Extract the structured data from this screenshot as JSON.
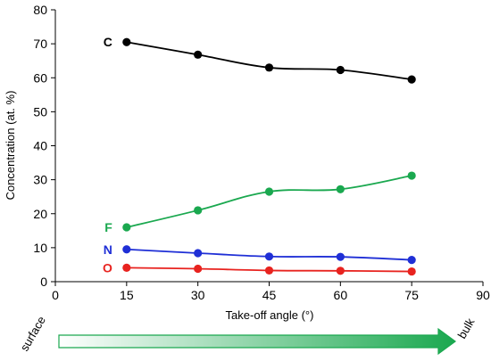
{
  "chart_data": {
    "type": "line",
    "xlabel": "Take-off angle (°)",
    "ylabel": "Concentration (at. %)",
    "xlim": [
      0,
      90
    ],
    "ylim": [
      0,
      80
    ],
    "x_ticks": [
      0,
      15,
      30,
      45,
      60,
      75,
      90
    ],
    "y_ticks": [
      0,
      10,
      20,
      30,
      40,
      50,
      60,
      70,
      80
    ],
    "grid": false,
    "x": [
      15,
      30,
      45,
      60,
      75
    ],
    "series": [
      {
        "name": "C",
        "color": "#000000",
        "values": [
          70.5,
          66.8,
          63.0,
          62.3,
          59.5
        ]
      },
      {
        "name": "F",
        "color": "#1aa84f",
        "values": [
          16.0,
          21.0,
          26.5,
          27.2,
          31.2
        ]
      },
      {
        "name": "N",
        "color": "#1f2fd6",
        "values": [
          9.5,
          8.4,
          7.4,
          7.3,
          6.4
        ]
      },
      {
        "name": "O",
        "color": "#e8231f",
        "values": [
          4.1,
          3.8,
          3.3,
          3.2,
          3.0
        ]
      }
    ],
    "annotations": {
      "left": "surface",
      "right": "bulk",
      "arrow_color": "#1aa84f"
    }
  }
}
